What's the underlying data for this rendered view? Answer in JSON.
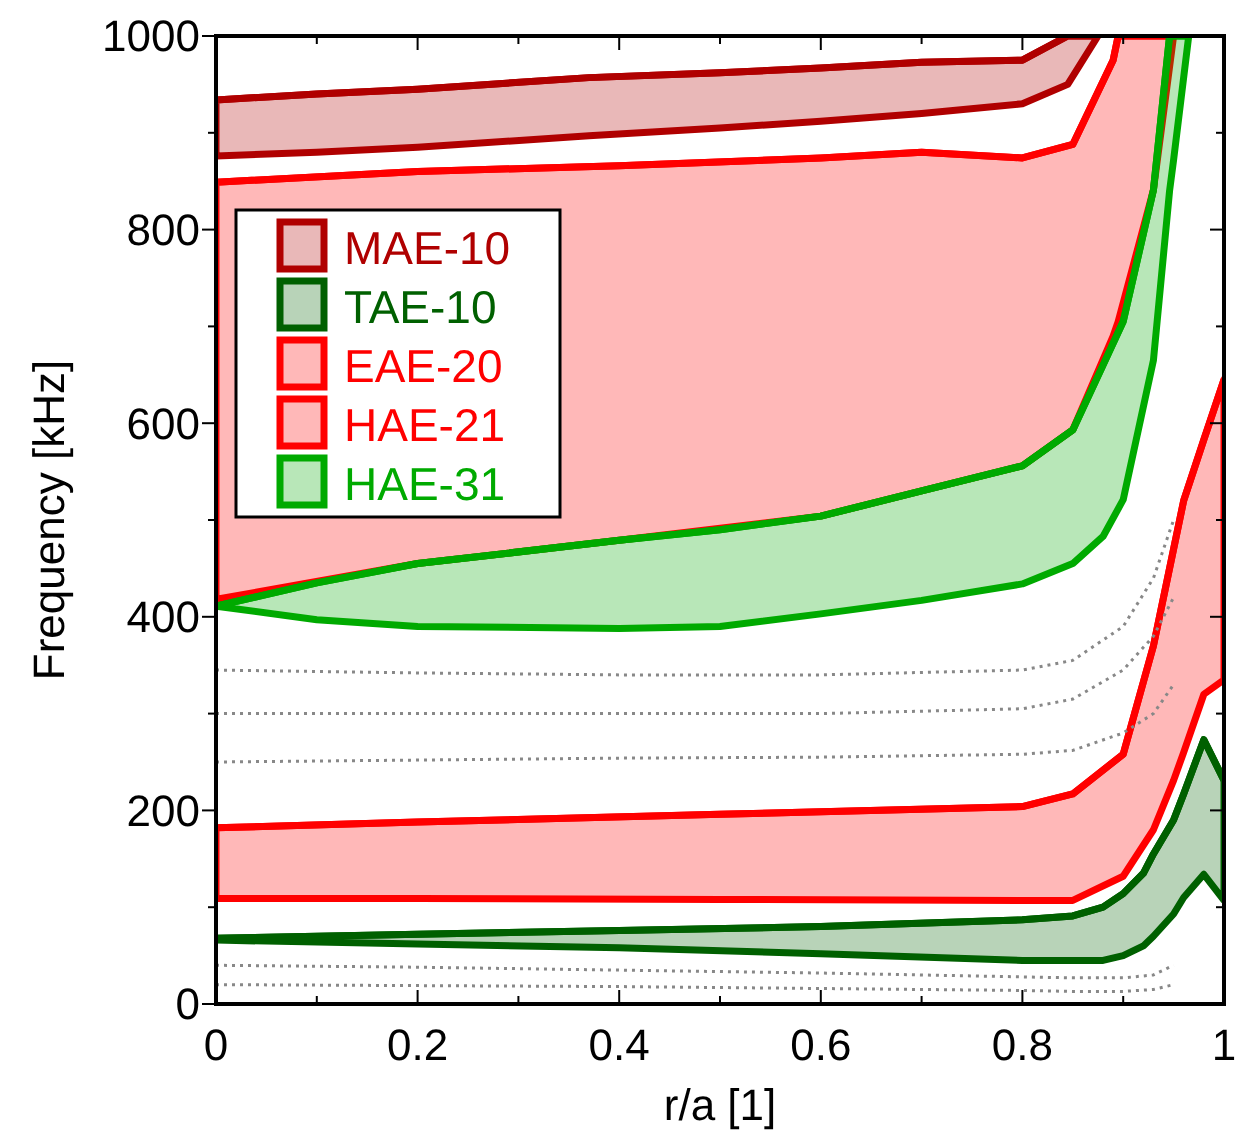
{
  "chart_data": {
    "type": "line",
    "xlabel": "r/a [1]",
    "ylabel": "Frequency [kHz]",
    "xlim": [
      0,
      1
    ],
    "ylim": [
      0,
      1000
    ],
    "xticks": [
      0,
      {
        "value": 0.1,
        "label": null
      },
      0.2,
      {
        "value": 0.3,
        "label": null
      },
      0.4,
      {
        "value": 0.5,
        "label": null
      },
      0.6,
      {
        "value": 0.7,
        "label": null
      },
      0.8,
      {
        "value": 0.9,
        "label": null
      },
      1
    ],
    "yticks": [
      0,
      {
        "value": 100,
        "label": null
      },
      200,
      {
        "value": 300,
        "label": null
      },
      400,
      {
        "value": 500,
        "label": null
      },
      600,
      {
        "value": 700,
        "label": null
      },
      800,
      {
        "value": 900,
        "label": null
      },
      1000
    ],
    "grid": false,
    "legend": "top left",
    "series": [
      {
        "name": "MAE-10",
        "color": "#b00000",
        "x": [
          0,
          0.1,
          0.2,
          0.37,
          0.5,
          0.6,
          0.7,
          0.8,
          0.845,
          0.875
        ],
        "lower": [
          876,
          880,
          885,
          897,
          905,
          912,
          920,
          930,
          950,
          1000
        ],
        "values": [
          934,
          940,
          945,
          957,
          962,
          967,
          973,
          975,
          1000,
          1000
        ],
        "upper": [
          934,
          940,
          945,
          957,
          962,
          967,
          973,
          975,
          1000,
          1000
        ]
      },
      {
        "name": "TAE-10",
        "color": "#006000",
        "x": [
          0,
          0.2,
          0.4,
          0.6,
          0.8,
          0.85,
          0.88,
          0.9,
          0.92,
          0.93,
          0.95,
          0.96,
          0.98,
          1
        ],
        "lower": [
          66,
          62,
          58,
          52,
          45,
          45,
          45,
          50,
          60,
          70,
          93,
          110,
          134,
          107
        ],
        "values": [
          68,
          72,
          76,
          80,
          87,
          91,
          100,
          114,
          135,
          155,
          190,
          217,
          273,
          231
        ],
        "upper": [
          68,
          72,
          76,
          80,
          87,
          91,
          100,
          114,
          135,
          155,
          190,
          217,
          273,
          231
        ]
      },
      {
        "name": "EAE-20",
        "color": "#ff0000",
        "x": [
          0,
          0.2,
          0.5,
          0.8,
          0.85,
          0.9,
          0.93,
          0.95,
          0.96,
          0.98,
          1
        ],
        "lower": [
          109,
          109,
          108,
          107,
          107,
          132,
          180,
          231,
          260,
          320,
          335
        ],
        "values": [
          182,
          188,
          196,
          204,
          217,
          258,
          370,
          470,
          520,
          583,
          645
        ],
        "upper": [
          182,
          188,
          196,
          204,
          217,
          258,
          370,
          470,
          520,
          583,
          645
        ]
      },
      {
        "name": "HAE-21",
        "color": "#ff0000",
        "x": [
          0,
          0.2,
          0.4,
          0.6,
          0.7,
          0.8,
          0.85,
          0.89,
          0.895,
          0.93,
          0.95
        ],
        "lower": [
          418,
          455,
          479,
          504,
          530,
          556,
          593,
          690,
          705,
          841,
          1000
        ],
        "values": [
          849,
          860,
          866,
          874,
          880,
          874,
          888,
          975,
          1000,
          1000,
          1000
        ],
        "upper": [
          849,
          860,
          866,
          874,
          880,
          874,
          888,
          975,
          1000,
          1000,
          1000
        ]
      },
      {
        "name": "HAE-31",
        "color": "#00aa00",
        "x": [
          0,
          0.1,
          0.2,
          0.4,
          0.5,
          0.6,
          0.7,
          0.8,
          0.85,
          0.88,
          0.9,
          0.93,
          0.946,
          0.95,
          0.965
        ],
        "lower": [
          411,
          397,
          390,
          388,
          390,
          403,
          417,
          434,
          455,
          483,
          521,
          665,
          840,
          872,
          1000
        ],
        "values": [
          411,
          435,
          455,
          479,
          490,
          504,
          530,
          556,
          593,
          660,
          705,
          841,
          1000,
          1000,
          1000
        ],
        "upper": [
          411,
          435,
          455,
          479,
          490,
          504,
          530,
          556,
          593,
          660,
          705,
          841,
          1000,
          1000,
          1000
        ]
      },
      {
        "type": "line",
        "color": "#888888",
        "line_style": "dotted",
        "marker": "none",
        "x": [
          0,
          0.2,
          0.4,
          0.6,
          0.8,
          0.85,
          0.9,
          0.93,
          0.95
        ],
        "values": [
          345,
          342,
          340,
          340,
          345,
          355,
          390,
          440,
          500
        ]
      },
      {
        "type": "line",
        "color": "#888888",
        "line_style": "dotted",
        "marker": "none",
        "x": [
          0,
          0.2,
          0.4,
          0.6,
          0.8,
          0.85,
          0.9,
          0.93,
          0.95
        ],
        "values": [
          300,
          300,
          300,
          300,
          305,
          315,
          345,
          380,
          420
        ]
      },
      {
        "type": "line",
        "color": "#888888",
        "line_style": "dotted",
        "marker": "none",
        "x": [
          0,
          0.2,
          0.4,
          0.6,
          0.8,
          0.85,
          0.9,
          0.93,
          0.95
        ],
        "values": [
          250,
          252,
          254,
          255,
          258,
          262,
          280,
          300,
          330
        ]
      },
      {
        "type": "line",
        "color": "#888888",
        "line_style": "dotted",
        "marker": "none",
        "x": [
          0,
          0.2,
          0.4,
          0.6,
          0.8,
          0.85,
          0.9,
          0.93,
          0.95
        ],
        "values": [
          40,
          38,
          35,
          32,
          28,
          27,
          27,
          30,
          40
        ]
      },
      {
        "type": "line",
        "color": "#888888",
        "line_style": "dotted",
        "marker": "none",
        "x": [
          0,
          0.2,
          0.4,
          0.6,
          0.8,
          0.85,
          0.9,
          0.93,
          0.95
        ],
        "values": [
          20,
          19,
          18,
          16,
          14,
          13,
          13,
          15,
          20
        ]
      }
    ]
  }
}
